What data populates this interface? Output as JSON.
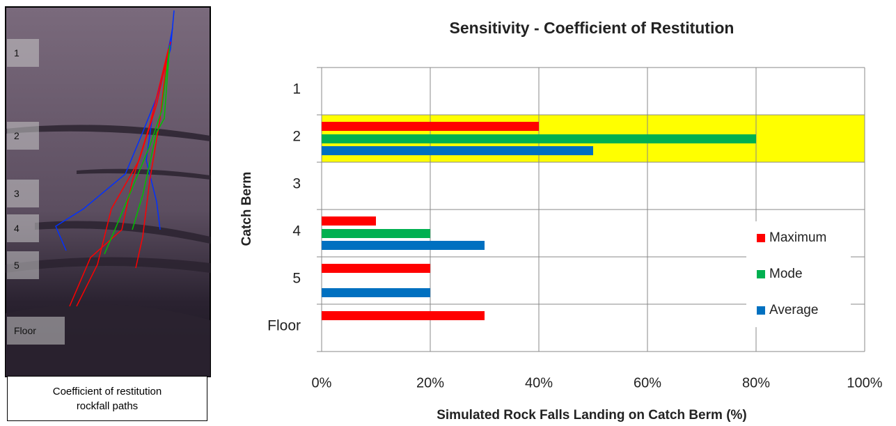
{
  "panel": {
    "labels": [
      "1",
      "2",
      "3",
      "4",
      "5",
      "Floor"
    ],
    "caption": "Coefficient of restitution rockfall paths"
  },
  "chart_data": {
    "type": "hbar",
    "title": "Sensitivity - Coefficient of Restitution",
    "x_label": "Simulated Rock Falls Landing on Catch Berm (%)",
    "y_label": "Catch Berm",
    "categories": [
      "1",
      "2",
      "3",
      "4",
      "5",
      "Floor"
    ],
    "series": [
      {
        "name": "Maximum",
        "color": "#ff0000",
        "values": [
          0,
          40,
          0,
          10,
          20,
          30
        ]
      },
      {
        "name": "Mode",
        "color": "#00b050",
        "values": [
          0,
          80,
          0,
          20,
          0,
          0
        ]
      },
      {
        "name": "Average",
        "color": "#0070c0",
        "values": [
          0,
          50,
          0,
          30,
          20,
          0
        ]
      }
    ],
    "xlim": [
      0,
      100
    ],
    "xticks": [
      {
        "value": 0,
        "label": "0%"
      },
      {
        "value": 20,
        "label": "20%"
      },
      {
        "value": 40,
        "label": "40%"
      },
      {
        "value": 60,
        "label": "60%"
      },
      {
        "value": 80,
        "label": "80%"
      },
      {
        "value": 100,
        "label": "100%"
      }
    ],
    "grid": true,
    "legend": "right",
    "highlight_categories": [
      "2"
    ],
    "highlight_color": "#ffff00"
  }
}
